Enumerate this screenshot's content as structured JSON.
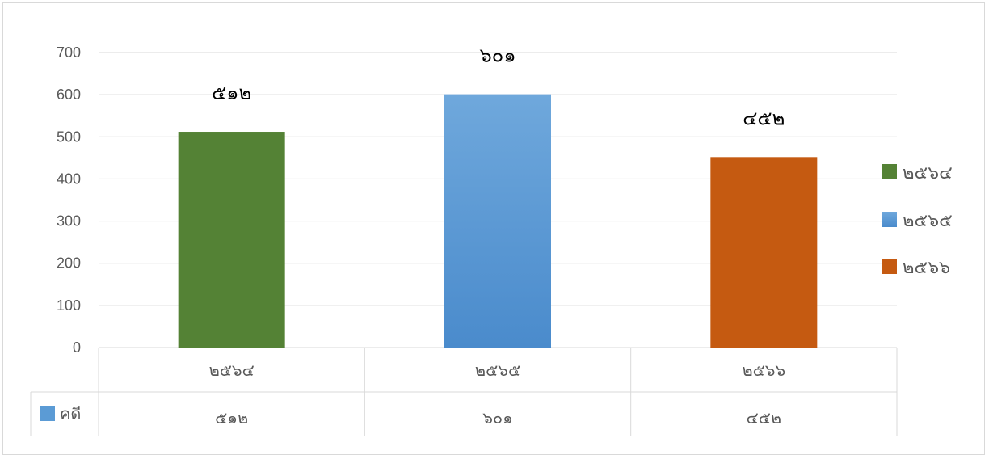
{
  "chart_data": {
    "type": "bar",
    "categories": [
      "๒๕๖๔",
      "๒๕๖๕",
      "๒๕๖๖"
    ],
    "values": [
      512,
      601,
      452
    ],
    "data_labels": [
      "๕๑๒",
      "๖๐๑",
      "๔๕๒"
    ],
    "colors": [
      "#548235",
      "#5b9bd5",
      "#c55a11"
    ],
    "ylim": [
      0,
      700
    ],
    "yticks": [
      0,
      100,
      200,
      300,
      400,
      500,
      600,
      700
    ],
    "grid": true,
    "legend": {
      "placement": "right",
      "entries": [
        "๒๕๖๔",
        "๒๕๖๕",
        "๒๕๖๖"
      ]
    },
    "data_table": {
      "header": [
        "๒๕๖๔",
        "๒๕๖๕",
        "๒๕๖๖"
      ],
      "rows": [
        {
          "name": "คดี",
          "key_color": "#5b9bd5",
          "values": [
            "๕๑๒",
            "๖๐๑",
            "๔๕๒"
          ]
        }
      ]
    }
  }
}
